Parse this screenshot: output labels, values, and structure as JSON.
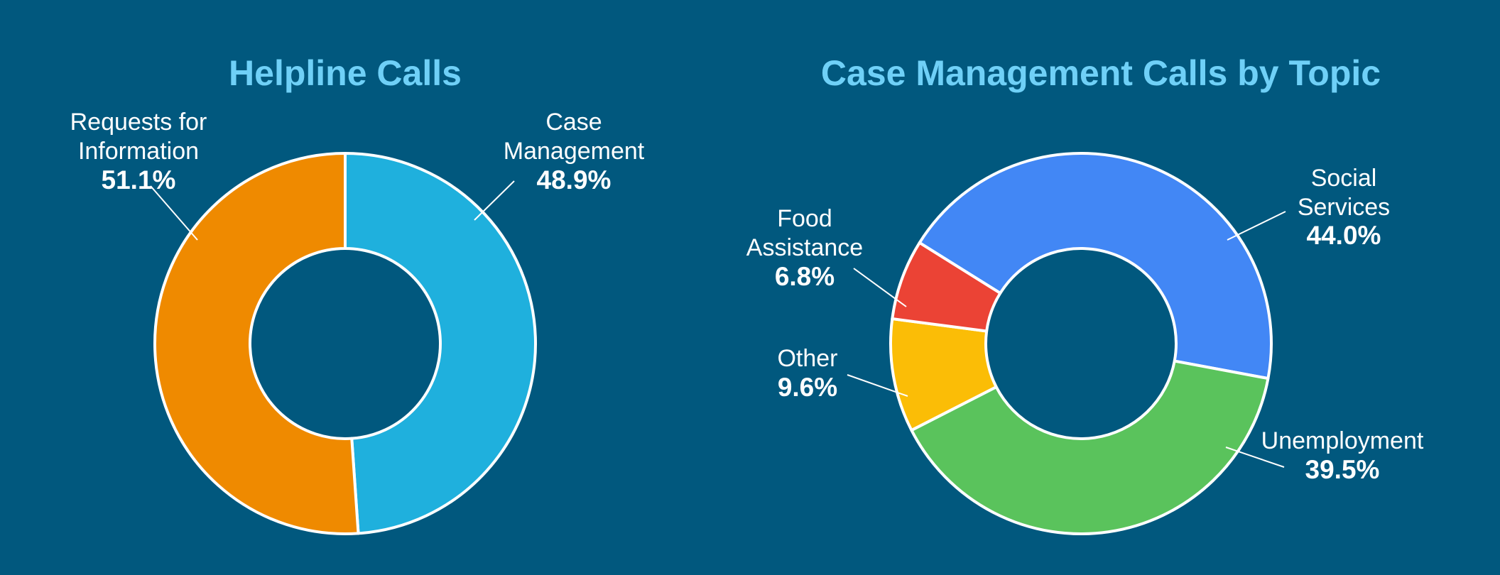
{
  "chart_data": [
    {
      "type": "pie",
      "variant": "donut",
      "title": "Helpline Calls",
      "start_angle_deg": 0,
      "direction": "clockwise",
      "slices": [
        {
          "label_lines": [
            "Case",
            "Management"
          ],
          "value": 48.9,
          "value_label": "48.9%",
          "color": "#1fb0dd"
        },
        {
          "label_lines": [
            "Requests for",
            "Information"
          ],
          "value": 51.1,
          "value_label": "51.1%",
          "color": "#ef8a00"
        }
      ]
    },
    {
      "type": "pie",
      "variant": "donut",
      "title": "Case Management Calls by Topic",
      "start_angle_deg": -58,
      "direction": "clockwise",
      "slices": [
        {
          "label_lines": [
            "Social",
            "Services"
          ],
          "value": 44.0,
          "value_label": "44.0%",
          "color": "#4287f5"
        },
        {
          "label_lines": [
            "Unemployment"
          ],
          "value": 39.5,
          "value_label": "39.5%",
          "color": "#5ac35c"
        },
        {
          "label_lines": [
            "Other"
          ],
          "value": 9.6,
          "value_label": "9.6%",
          "color": "#fbbd06"
        },
        {
          "label_lines": [
            "Food",
            "Assistance"
          ],
          "value": 6.8,
          "value_label": "6.8%",
          "color": "#eb4335"
        }
      ]
    }
  ]
}
